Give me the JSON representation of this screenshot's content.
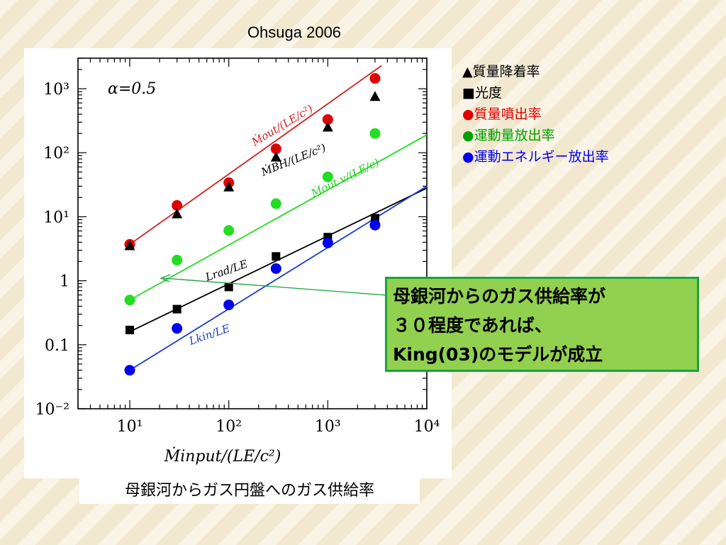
{
  "slide": {
    "top_title": "Ohsuga 2006",
    "legend": [
      {
        "text": "▲質量降着率",
        "color": "#000000"
      },
      {
        "text": "■光度",
        "color": "#000000"
      },
      {
        "text": "●質量噴出率",
        "color": "#e00000"
      },
      {
        "text": "●運動量放出率",
        "color": "#00a000"
      },
      {
        "text": "●運動エネルギー放出率",
        "color": "#0000ee"
      }
    ],
    "callout_lines": [
      "母銀河からのガス供給率が",
      "３０程度であれば、",
      "King(03)のモデルが成立"
    ],
    "caption": "母銀河からガス円盤へのガス供給率"
  },
  "chart_data": {
    "type": "scatter",
    "xscale": "log",
    "yscale": "log",
    "xlim": [
      3,
      10000
    ],
    "ylim": [
      0.01,
      3000
    ],
    "x_ticks": [
      "10¹",
      "10²",
      "10³",
      "10⁴"
    ],
    "y_ticks": [
      "10³",
      "10²",
      "10¹",
      "1",
      "0.1",
      "10⁻²"
    ],
    "xlabel": "Ṁinput/(LE/c²)",
    "annotation_alpha": "α=0.5",
    "series": [
      {
        "label": "Ṁout/(LE/c²)",
        "color": "#e00000",
        "marker": "circle",
        "x": [
          10,
          30,
          100,
          300,
          1000,
          3000
        ],
        "y": [
          3.7,
          15,
          34,
          115,
          330,
          1450
        ],
        "fit": [
          [
            10,
            3.7
          ],
          [
            3500,
            2300
          ]
        ]
      },
      {
        "label": "ṀBH/(LE/c²)",
        "color": "#000000",
        "marker": "triangle",
        "x": [
          10,
          30,
          100,
          300,
          1000,
          3000
        ],
        "y": [
          3.5,
          11,
          29,
          85,
          250,
          750
        ]
      },
      {
        "label": "Ṁout v/(LE/c)",
        "color": "#22dd22",
        "marker": "circle",
        "x": [
          10,
          30,
          100,
          300,
          1000,
          3000
        ],
        "y": [
          0.5,
          2.1,
          6.1,
          16,
          42,
          200
        ],
        "fit": [
          [
            10,
            0.5
          ],
          [
            10000,
            190
          ]
        ]
      },
      {
        "label": "Lrad/LE",
        "color": "#000000",
        "marker": "square",
        "x": [
          10,
          30,
          100,
          300,
          1000,
          3000
        ],
        "y": [
          0.17,
          0.36,
          0.8,
          2.4,
          4.8,
          9.5
        ],
        "fit": [
          [
            10,
            0.16
          ],
          [
            10000,
            28
          ]
        ]
      },
      {
        "label": "Lkin/LE",
        "color": "#0000ee",
        "marker": "circle",
        "x": [
          10,
          30,
          100,
          300,
          1000,
          3000
        ],
        "y": [
          0.04,
          0.18,
          0.42,
          1.55,
          3.9,
          7.4
        ],
        "fit": [
          [
            10,
            0.04
          ],
          [
            10000,
            30
          ]
        ]
      }
    ]
  }
}
